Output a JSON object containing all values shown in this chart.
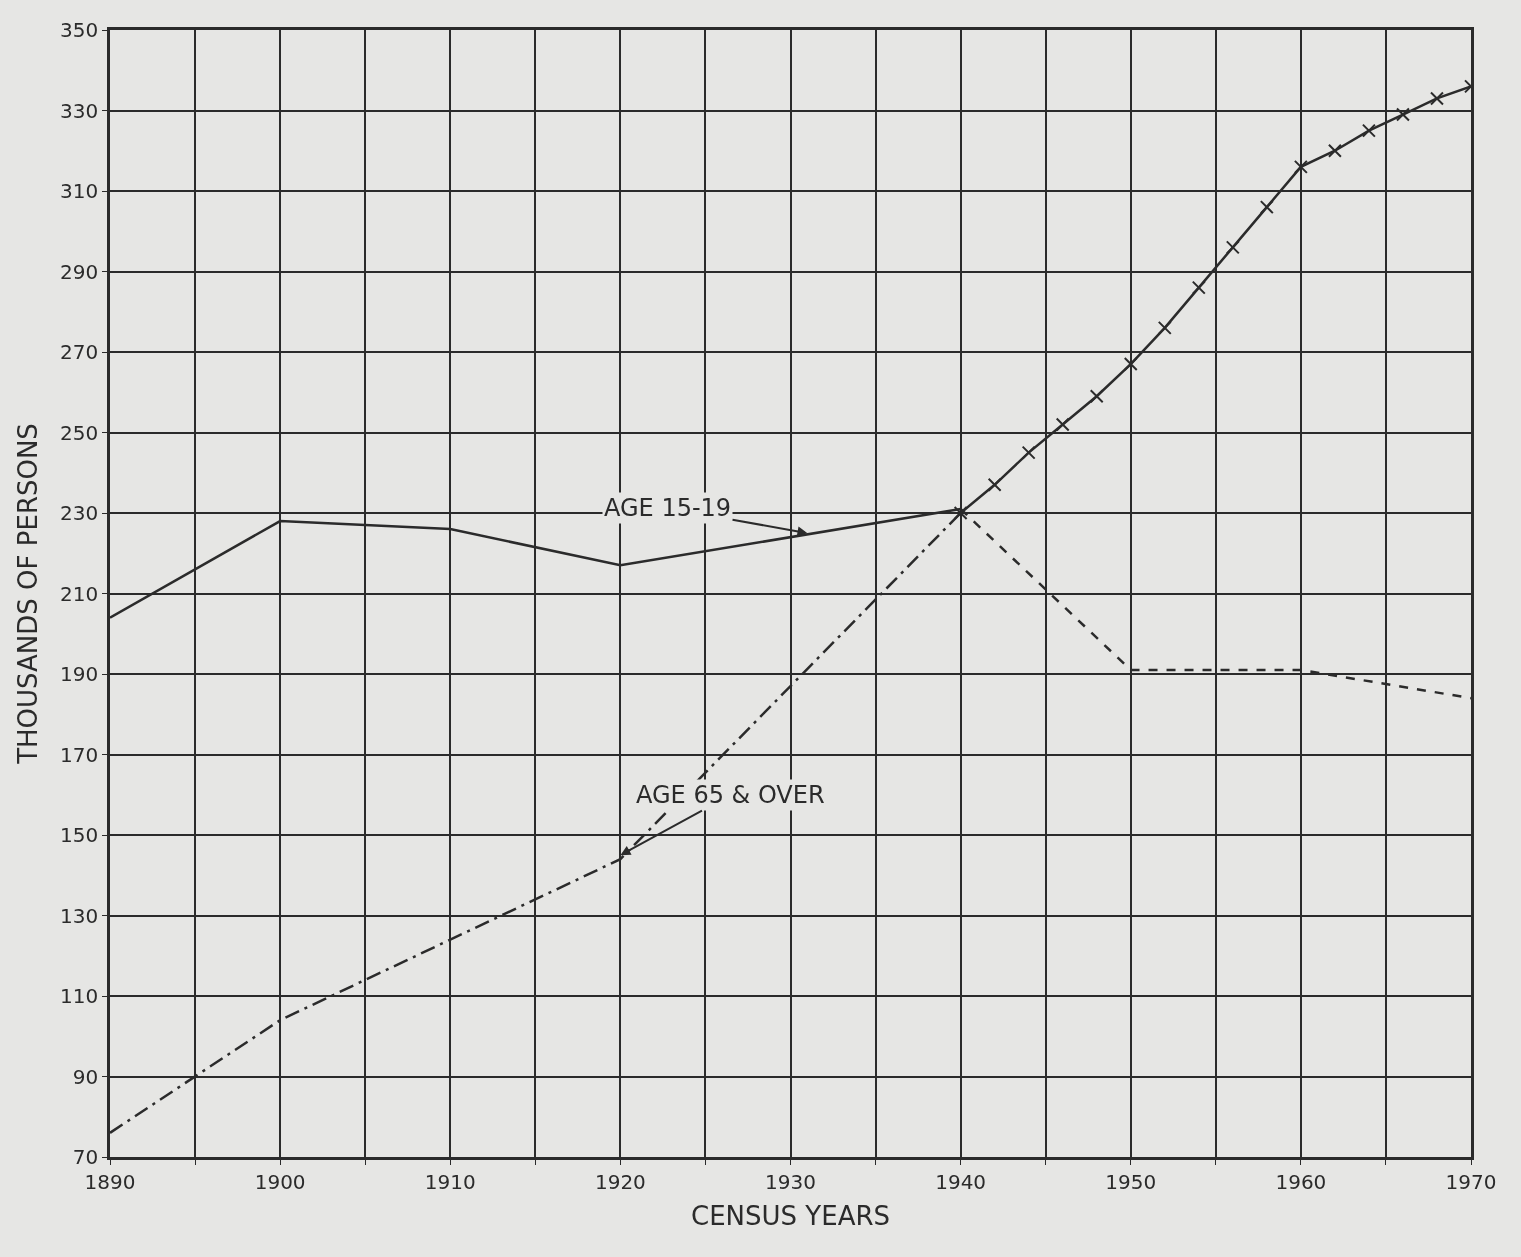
{
  "chart_data": {
    "type": "line",
    "xlabel": "CENSUS YEARS",
    "ylabel": "THOUSANDS OF PERSONS",
    "xlim": [
      1890,
      1970
    ],
    "ylim": [
      70,
      350
    ],
    "xticks": [
      1890,
      {
        "value": 1895,
        "label": null
      },
      1900,
      {
        "value": 1905,
        "label": null
      },
      1910,
      {
        "value": 1915,
        "label": null
      },
      1920,
      {
        "value": 1925,
        "label": null
      },
      1930,
      {
        "value": 1935,
        "label": null
      },
      1940,
      {
        "value": 1945,
        "label": null
      },
      1950,
      {
        "value": 1955,
        "label": null
      },
      1960,
      {
        "value": 1965,
        "label": null
      },
      1970
    ],
    "yticks": [
      70,
      90,
      110,
      130,
      150,
      170,
      190,
      210,
      230,
      250,
      270,
      290,
      310,
      330,
      350
    ],
    "grid": true,
    "series": [
      {
        "color": "#2b2b2b",
        "line_style": "solid",
        "marker": "none",
        "x": [
          1890,
          1900,
          1910,
          1920,
          1940
        ],
        "values": [
          204,
          228,
          226,
          217,
          231
        ]
      },
      {
        "color": "#2b2b2b",
        "line_style": "dashed",
        "marker": "none",
        "x": [
          1940,
          1950,
          1960,
          1970
        ],
        "values": [
          231,
          191,
          191,
          184
        ]
      },
      {
        "color": "#2b2b2b",
        "line_style": "dashdot",
        "marker": "none",
        "x": [
          1890,
          1900,
          1910,
          1920,
          1930,
          1940
        ],
        "values": [
          76,
          104,
          124,
          144,
          187,
          230
        ]
      },
      {
        "color": "#2b2b2b",
        "line_style": "solid",
        "marker": "cross",
        "x": [
          1940,
          1942,
          1944,
          1946,
          1948,
          1950,
          1952,
          1954,
          1956,
          1958,
          1960,
          1962,
          1964,
          1966,
          1968,
          1970
        ],
        "values": [
          230,
          237,
          245,
          252,
          259,
          267,
          276,
          286,
          296,
          306,
          316,
          320,
          325,
          329,
          333,
          336
        ]
      }
    ],
    "annotations": [
      {
        "text": "AGE 15-19",
        "x": 1931,
        "y": 225
      },
      {
        "text": "AGE 65 & OVER",
        "x": 1920,
        "y": 145
      }
    ]
  }
}
